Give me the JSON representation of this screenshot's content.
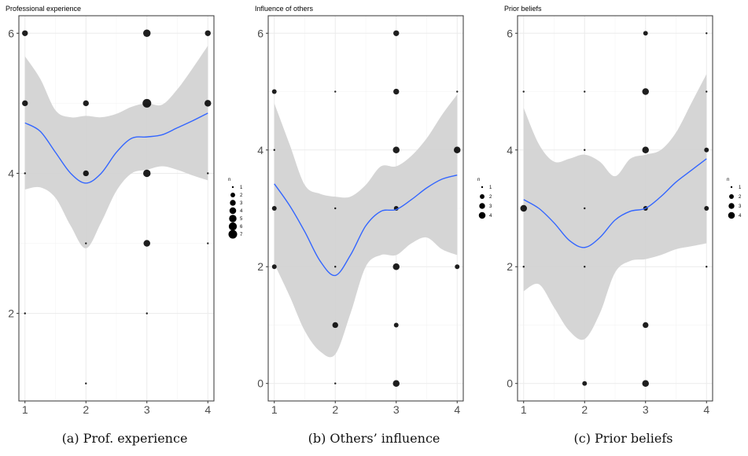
{
  "captions": [
    "(a) Prof. experience",
    "(b) Others’ influence",
    "(c) Prior beliefs"
  ],
  "legend_title": "n",
  "colors": {
    "smooth": "#3366ff",
    "ribbon": "#d3d3d3",
    "point": "#000000",
    "grid": "#ebebeb"
  },
  "chart_data": [
    {
      "type": "scatter",
      "title": "Professional experience",
      "xlabel": "",
      "ylabel": "",
      "xlim": [
        0.9,
        4.1
      ],
      "ylim": [
        0.75,
        6.25
      ],
      "xticks": [
        1,
        2,
        3,
        4
      ],
      "yticks": [
        2,
        4,
        6
      ],
      "grid": true,
      "legend": {
        "title": "n",
        "entries": [
          1,
          2,
          3,
          4,
          5,
          6,
          7
        ],
        "placement": "right"
      },
      "points": [
        {
          "x": 1,
          "y": 6,
          "n": 3
        },
        {
          "x": 1,
          "y": 5,
          "n": 3
        },
        {
          "x": 1,
          "y": 4,
          "n": 1
        },
        {
          "x": 1,
          "y": 2,
          "n": 1
        },
        {
          "x": 2,
          "y": 5,
          "n": 3
        },
        {
          "x": 2,
          "y": 4,
          "n": 3
        },
        {
          "x": 2,
          "y": 3,
          "n": 1
        },
        {
          "x": 2,
          "y": 1,
          "n": 1
        },
        {
          "x": 3,
          "y": 6,
          "n": 5
        },
        {
          "x": 3,
          "y": 5,
          "n": 7
        },
        {
          "x": 3,
          "y": 4,
          "n": 5
        },
        {
          "x": 3,
          "y": 3,
          "n": 4
        },
        {
          "x": 3,
          "y": 2,
          "n": 1
        },
        {
          "x": 4,
          "y": 6,
          "n": 3
        },
        {
          "x": 4,
          "y": 5,
          "n": 4
        },
        {
          "x": 4,
          "y": 4,
          "n": 1
        },
        {
          "x": 4,
          "y": 3,
          "n": 1
        }
      ],
      "smooth": {
        "x": [
          1.0,
          1.25,
          1.5,
          1.75,
          2.0,
          2.25,
          2.5,
          2.75,
          3.0,
          3.25,
          3.5,
          3.75,
          4.0
        ],
        "y": [
          4.72,
          4.6,
          4.3,
          4.0,
          3.86,
          4.0,
          4.3,
          4.5,
          4.52,
          4.55,
          4.65,
          4.75,
          4.86
        ],
        "lower": [
          3.77,
          3.8,
          3.65,
          3.25,
          2.93,
          3.3,
          3.75,
          4.0,
          4.05,
          4.1,
          4.05,
          3.97,
          3.9
        ],
        "upper": [
          5.67,
          5.35,
          4.9,
          4.8,
          4.82,
          4.8,
          4.85,
          4.95,
          5.0,
          4.98,
          5.2,
          5.5,
          5.82
        ]
      }
    },
    {
      "type": "scatter",
      "title": "Influence of others",
      "xlabel": "",
      "ylabel": "",
      "xlim": [
        0.9,
        4.1
      ],
      "ylim": [
        -0.3,
        6.3
      ],
      "xticks": [
        1,
        2,
        3,
        4
      ],
      "yticks": [
        0,
        2,
        4,
        6
      ],
      "grid": true,
      "legend": {
        "title": "n",
        "entries": [
          1,
          2,
          3,
          4
        ],
        "placement": "right"
      },
      "points": [
        {
          "x": 1,
          "y": 5,
          "n": 2
        },
        {
          "x": 1,
          "y": 4,
          "n": 1
        },
        {
          "x": 1,
          "y": 3,
          "n": 2
        },
        {
          "x": 1,
          "y": 2,
          "n": 2
        },
        {
          "x": 2,
          "y": 5,
          "n": 1
        },
        {
          "x": 2,
          "y": 3,
          "n": 1
        },
        {
          "x": 2,
          "y": 2,
          "n": 1
        },
        {
          "x": 2,
          "y": 1,
          "n": 3
        },
        {
          "x": 2,
          "y": 0,
          "n": 1
        },
        {
          "x": 3,
          "y": 6,
          "n": 3
        },
        {
          "x": 3,
          "y": 5,
          "n": 3
        },
        {
          "x": 3,
          "y": 4,
          "n": 4
        },
        {
          "x": 3,
          "y": 3,
          "n": 2
        },
        {
          "x": 3,
          "y": 2,
          "n": 4
        },
        {
          "x": 3,
          "y": 1,
          "n": 2
        },
        {
          "x": 3,
          "y": 0,
          "n": 4
        },
        {
          "x": 4,
          "y": 5,
          "n": 1
        },
        {
          "x": 4,
          "y": 4,
          "n": 4
        },
        {
          "x": 4,
          "y": 2,
          "n": 2
        }
      ],
      "smooth": {
        "x": [
          1.0,
          1.25,
          1.5,
          1.75,
          2.0,
          2.25,
          2.5,
          2.75,
          3.0,
          3.25,
          3.5,
          3.75,
          4.0
        ],
        "y": [
          3.42,
          3.05,
          2.6,
          2.1,
          1.85,
          2.2,
          2.7,
          2.95,
          2.98,
          3.15,
          3.35,
          3.5,
          3.57
        ],
        "lower": [
          2.05,
          1.5,
          0.9,
          0.55,
          0.5,
          1.2,
          2.0,
          2.2,
          2.2,
          2.4,
          2.5,
          2.3,
          2.2
        ],
        "upper": [
          4.8,
          4.1,
          3.4,
          3.25,
          3.2,
          3.2,
          3.4,
          3.72,
          3.72,
          3.9,
          4.2,
          4.6,
          4.95
        ]
      }
    },
    {
      "type": "scatter",
      "title": "Prior beliefs",
      "xlabel": "",
      "ylabel": "",
      "xlim": [
        0.9,
        4.1
      ],
      "ylim": [
        -0.3,
        6.3
      ],
      "xticks": [
        1,
        2,
        3,
        4
      ],
      "yticks": [
        0,
        2,
        4,
        6
      ],
      "grid": true,
      "legend": {
        "title": "n",
        "entries": [
          1,
          2,
          3,
          4
        ],
        "placement": "right"
      },
      "points": [
        {
          "x": 1,
          "y": 5,
          "n": 1
        },
        {
          "x": 1,
          "y": 3,
          "n": 4
        },
        {
          "x": 1,
          "y": 2,
          "n": 1
        },
        {
          "x": 2,
          "y": 5,
          "n": 1
        },
        {
          "x": 2,
          "y": 4,
          "n": 1
        },
        {
          "x": 2,
          "y": 3,
          "n": 1
        },
        {
          "x": 2,
          "y": 2,
          "n": 1
        },
        {
          "x": 2,
          "y": 0,
          "n": 2
        },
        {
          "x": 3,
          "y": 6,
          "n": 2
        },
        {
          "x": 3,
          "y": 5,
          "n": 4
        },
        {
          "x": 3,
          "y": 4,
          "n": 4
        },
        {
          "x": 3,
          "y": 3,
          "n": 2
        },
        {
          "x": 3,
          "y": 1,
          "n": 3
        },
        {
          "x": 3,
          "y": 0,
          "n": 4
        },
        {
          "x": 4,
          "y": 6,
          "n": 1
        },
        {
          "x": 4,
          "y": 5,
          "n": 1
        },
        {
          "x": 4,
          "y": 4,
          "n": 2
        },
        {
          "x": 4,
          "y": 3,
          "n": 2
        },
        {
          "x": 4,
          "y": 2,
          "n": 1
        }
      ],
      "smooth": {
        "x": [
          1.0,
          1.25,
          1.5,
          1.75,
          2.0,
          2.25,
          2.5,
          2.75,
          3.0,
          3.25,
          3.5,
          3.75,
          4.0
        ],
        "y": [
          3.15,
          3.0,
          2.75,
          2.45,
          2.33,
          2.5,
          2.8,
          2.95,
          3.0,
          3.2,
          3.45,
          3.65,
          3.85
        ],
        "lower": [
          1.58,
          1.7,
          1.3,
          0.9,
          0.76,
          1.2,
          1.9,
          2.1,
          2.13,
          2.2,
          2.3,
          2.35,
          2.4
        ],
        "upper": [
          4.72,
          4.1,
          3.8,
          3.85,
          3.92,
          3.8,
          3.55,
          3.85,
          3.92,
          4.0,
          4.3,
          4.8,
          5.3
        ]
      }
    }
  ]
}
